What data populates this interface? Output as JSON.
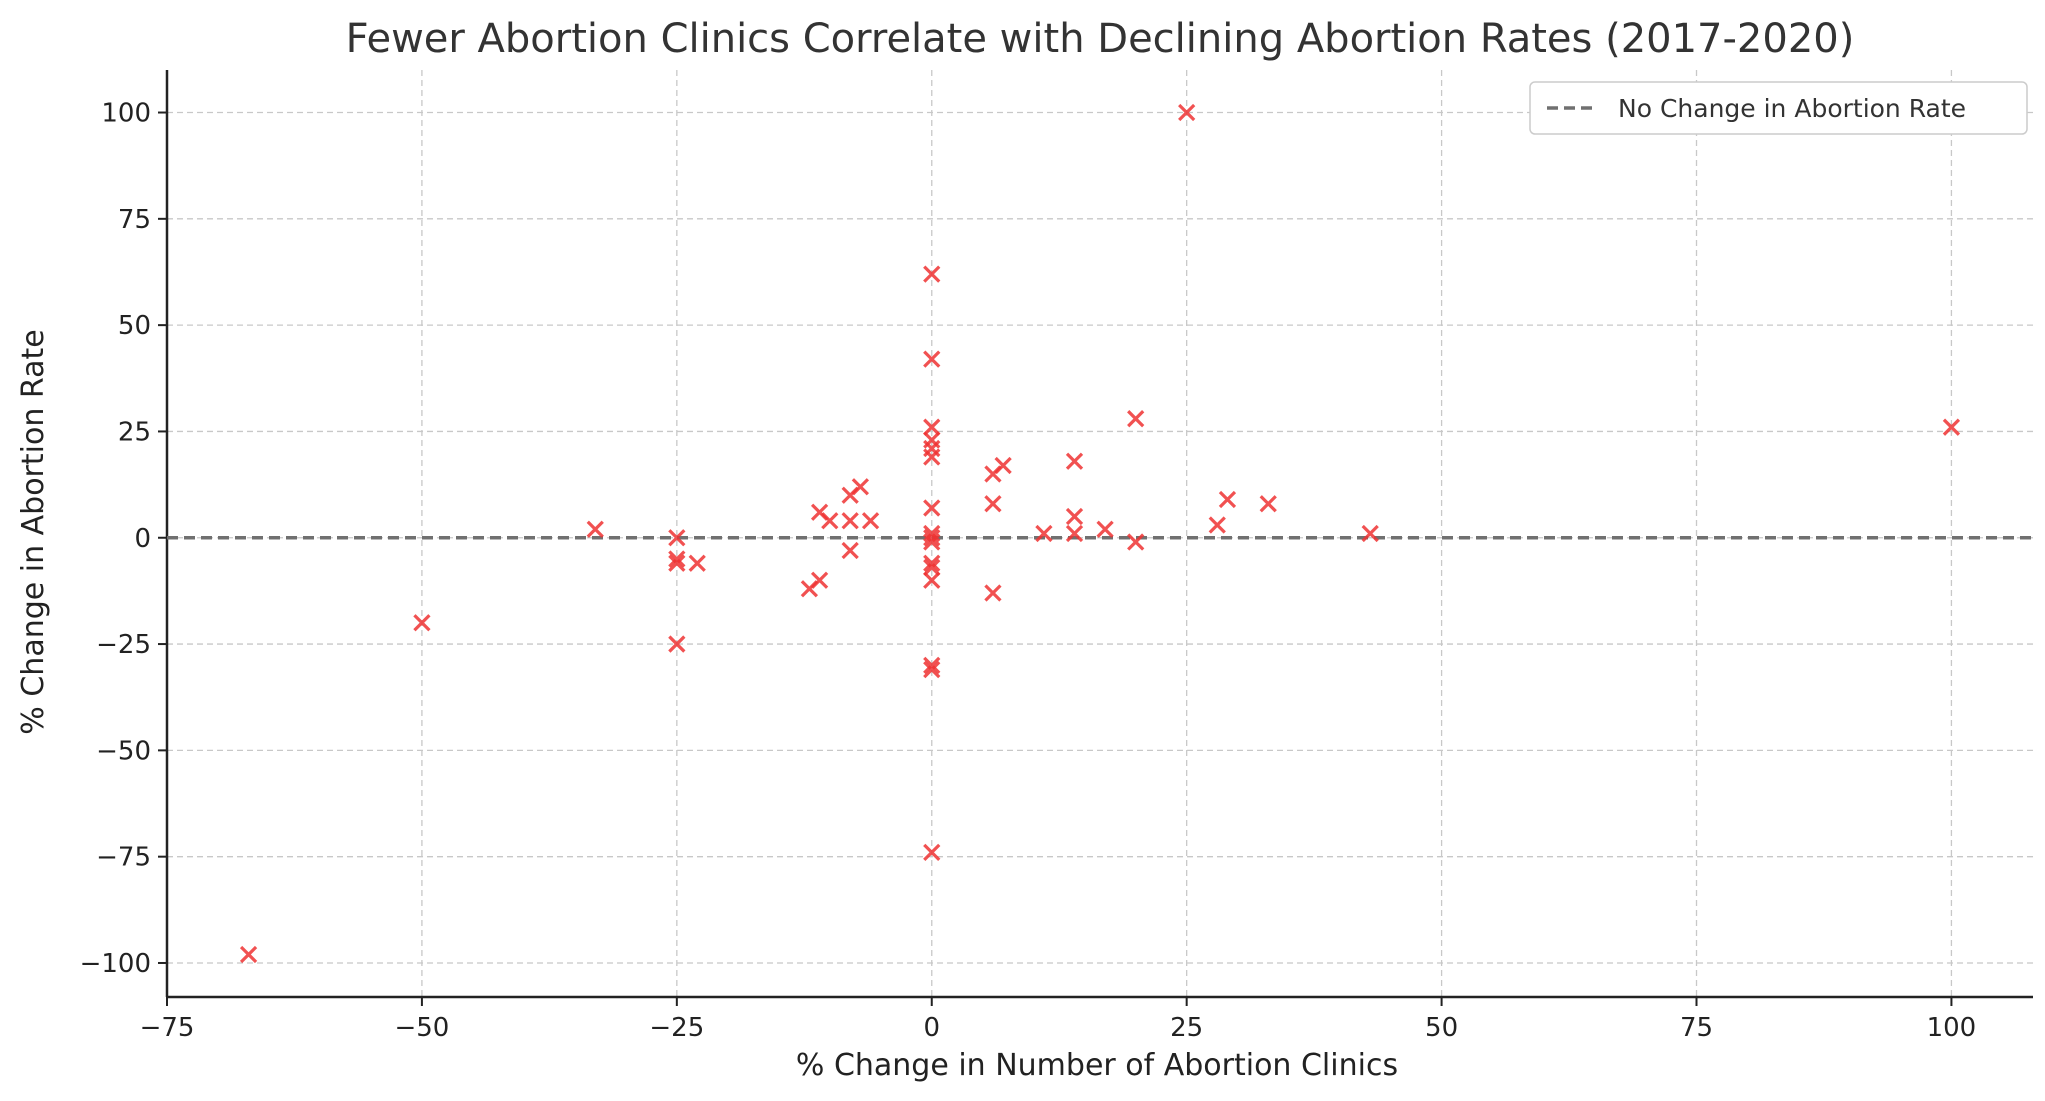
{
  "chart_data": {
    "type": "scatter",
    "title": "Fewer Abortion Clinics Correlate with Declining Abortion Rates (2017-2020)",
    "xlabel": "% Change in Number of Abortion Clinics",
    "ylabel": "% Change in Abortion Rate",
    "xlim": [
      -75,
      108
    ],
    "ylim": [
      -108,
      110
    ],
    "xticks": [
      -75,
      -50,
      -25,
      0,
      25,
      50,
      75,
      100
    ],
    "yticks": [
      -100,
      -75,
      -50,
      -25,
      0,
      25,
      50,
      75,
      100
    ],
    "xtick_labels": [
      "−75",
      "−50",
      "−25",
      "0",
      "25",
      "50",
      "75",
      "100"
    ],
    "ytick_labels": [
      "−100",
      "−75",
      "−50",
      "−25",
      "0",
      "25",
      "50",
      "75",
      "100"
    ],
    "grid": true,
    "marker": "x",
    "marker_color": "#ee3333",
    "reference_line": {
      "y": 0,
      "style": "dashed",
      "color": "#707070",
      "label": "No Change in Abortion Rate"
    },
    "legend": {
      "placement": "top-right",
      "entries": [
        "No Change in Abortion Rate"
      ]
    },
    "points": [
      [
        -67,
        -98
      ],
      [
        -50,
        -20
      ],
      [
        -33,
        2
      ],
      [
        -25,
        0
      ],
      [
        -25,
        -5
      ],
      [
        -25,
        -6
      ],
      [
        -25,
        -25
      ],
      [
        -23,
        -6
      ],
      [
        -12,
        -12
      ],
      [
        -11,
        -10
      ],
      [
        -11,
        6
      ],
      [
        -10,
        4
      ],
      [
        -8,
        10
      ],
      [
        -7,
        12
      ],
      [
        -8,
        4
      ],
      [
        -8,
        -3
      ],
      [
        -6,
        4
      ],
      [
        0,
        62
      ],
      [
        0,
        42
      ],
      [
        0,
        26
      ],
      [
        0,
        23
      ],
      [
        0,
        21
      ],
      [
        0,
        19
      ],
      [
        0,
        7
      ],
      [
        0,
        1
      ],
      [
        0,
        0
      ],
      [
        0,
        -1
      ],
      [
        0,
        -6
      ],
      [
        0,
        -7
      ],
      [
        0,
        -10
      ],
      [
        0,
        -30
      ],
      [
        0,
        -31
      ],
      [
        0,
        -74
      ],
      [
        6,
        15
      ],
      [
        7,
        17
      ],
      [
        6,
        8
      ],
      [
        6,
        -13
      ],
      [
        11,
        1
      ],
      [
        14,
        18
      ],
      [
        14,
        5
      ],
      [
        14,
        1
      ],
      [
        17,
        2
      ],
      [
        20,
        28
      ],
      [
        20,
        -1
      ],
      [
        25,
        100
      ],
      [
        28,
        3
      ],
      [
        29,
        9
      ],
      [
        33,
        8
      ],
      [
        43,
        1
      ],
      [
        100,
        26
      ]
    ]
  }
}
